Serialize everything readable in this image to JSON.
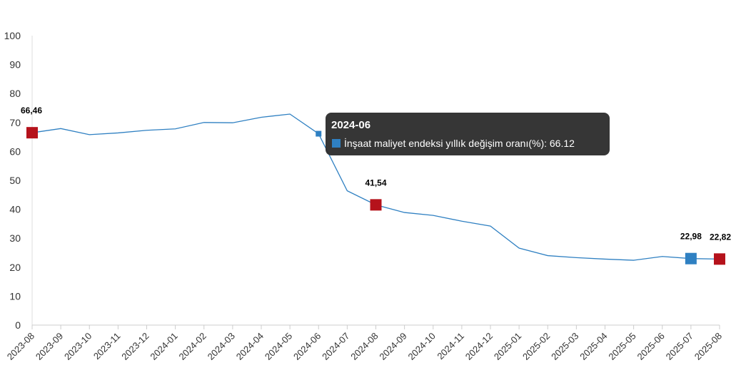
{
  "chart_data": {
    "type": "line",
    "categories": [
      "2023-08",
      "2023-09",
      "2023-10",
      "2023-11",
      "2023-12",
      "2024-01",
      "2024-02",
      "2024-03",
      "2024-04",
      "2024-05",
      "2024-06",
      "2024-07",
      "2024-08",
      "2024-09",
      "2024-10",
      "2024-11",
      "2024-12",
      "2025-01",
      "2025-02",
      "2025-03",
      "2025-04",
      "2025-05",
      "2025-06",
      "2025-07",
      "2025-08"
    ],
    "series": [
      {
        "name": "İnşaat maliyet endeksi yıllık değişim oranı(%)",
        "values": [
          66.46,
          67.9,
          65.8,
          66.4,
          67.3,
          67.8,
          70.0,
          69.9,
          71.8,
          72.9,
          66.12,
          46.4,
          41.54,
          38.9,
          37.9,
          35.9,
          34.2,
          26.6,
          24.0,
          23.3,
          22.8,
          22.4,
          23.7,
          22.98,
          22.82
        ]
      }
    ],
    "ylim": [
      0,
      100
    ],
    "yticks": [
      0,
      10,
      20,
      30,
      40,
      50,
      60,
      70,
      80,
      90,
      100
    ],
    "grid": false,
    "line_color": "#2f80c2",
    "highlight_red": "#b5121b",
    "highlight_blue": "#2f80c2",
    "highlighted_points": [
      {
        "category": "2023-08",
        "label": "66,46",
        "color": "#b5121b"
      },
      {
        "category": "2024-08",
        "label": "41,54",
        "color": "#b5121b"
      },
      {
        "category": "2025-07",
        "label": "22,98",
        "color": "#2f80c2"
      },
      {
        "category": "2025-08",
        "label": "22,82",
        "color": "#b5121b"
      }
    ],
    "tooltip": {
      "category": "2024-06",
      "title": "2024-06",
      "text": "İnşaat maliyet endeksi yıllık değişim oranı(%): 66.12"
    }
  }
}
